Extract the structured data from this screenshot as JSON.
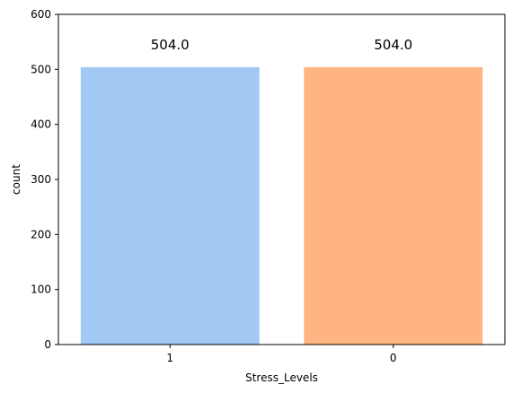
{
  "chart_data": {
    "type": "bar",
    "categories": [
      "1",
      "0"
    ],
    "values": [
      504,
      504
    ],
    "data_labels": [
      "504.0",
      "504.0"
    ],
    "colors": [
      "#a1c9f4",
      "#ffb482"
    ],
    "title": "",
    "xlabel": "Stress_Levels",
    "ylabel": "count",
    "ylim": [
      0,
      600
    ],
    "yticks": [
      0,
      100,
      200,
      300,
      400,
      500,
      600
    ],
    "grid": false,
    "legend": "none"
  }
}
